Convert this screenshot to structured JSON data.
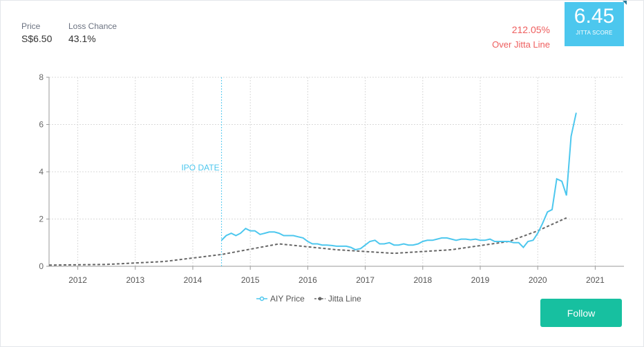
{
  "stats": {
    "price_label": "Price",
    "price_value": "S$6.50",
    "loss_label": "Loss Chance",
    "loss_value": "43.1%"
  },
  "over_jitta": {
    "percent": "212.05%",
    "label": "Over Jitta Line"
  },
  "score": {
    "value": "6.45",
    "caption": "JITTA SCORE"
  },
  "follow_label": "Follow",
  "colors": {
    "price": "#4cc7ee",
    "jitta": "#666666",
    "accent": "#17c0a0",
    "over": "#ee5e5e"
  },
  "chart_data": {
    "type": "line",
    "xlim": [
      2011.5,
      2021.5
    ],
    "ylim": [
      0,
      8
    ],
    "x_ticks": [
      "2012",
      "2013",
      "2014",
      "2015",
      "2016",
      "2017",
      "2018",
      "2019",
      "2020",
      "2021"
    ],
    "y_ticks": [
      "0",
      "2",
      "4",
      "6",
      "8"
    ],
    "annotation": {
      "label": "IPO DATE",
      "x": 2014.5
    },
    "series": [
      {
        "name": "AIY Price",
        "points": [
          [
            2014.5,
            1.1
          ],
          [
            2014.58,
            1.3
          ],
          [
            2014.67,
            1.4
          ],
          [
            2014.75,
            1.3
          ],
          [
            2014.83,
            1.4
          ],
          [
            2014.92,
            1.6
          ],
          [
            2015.0,
            1.5
          ],
          [
            2015.08,
            1.5
          ],
          [
            2015.17,
            1.35
          ],
          [
            2015.25,
            1.4
          ],
          [
            2015.33,
            1.45
          ],
          [
            2015.42,
            1.45
          ],
          [
            2015.5,
            1.4
          ],
          [
            2015.58,
            1.3
          ],
          [
            2015.67,
            1.3
          ],
          [
            2015.75,
            1.3
          ],
          [
            2015.83,
            1.25
          ],
          [
            2015.92,
            1.2
          ],
          [
            2016.0,
            1.05
          ],
          [
            2016.08,
            0.95
          ],
          [
            2016.17,
            0.95
          ],
          [
            2016.25,
            0.9
          ],
          [
            2016.33,
            0.9
          ],
          [
            2016.42,
            0.88
          ],
          [
            2016.5,
            0.85
          ],
          [
            2016.58,
            0.85
          ],
          [
            2016.67,
            0.85
          ],
          [
            2016.75,
            0.8
          ],
          [
            2016.83,
            0.7
          ],
          [
            2016.92,
            0.75
          ],
          [
            2017.0,
            0.9
          ],
          [
            2017.08,
            1.05
          ],
          [
            2017.17,
            1.1
          ],
          [
            2017.25,
            0.95
          ],
          [
            2017.33,
            0.95
          ],
          [
            2017.42,
            1.0
          ],
          [
            2017.5,
            0.9
          ],
          [
            2017.58,
            0.9
          ],
          [
            2017.67,
            0.95
          ],
          [
            2017.75,
            0.9
          ],
          [
            2017.83,
            0.9
          ],
          [
            2017.92,
            0.95
          ],
          [
            2018.0,
            1.05
          ],
          [
            2018.08,
            1.1
          ],
          [
            2018.17,
            1.1
          ],
          [
            2018.25,
            1.15
          ],
          [
            2018.33,
            1.2
          ],
          [
            2018.42,
            1.2
          ],
          [
            2018.5,
            1.15
          ],
          [
            2018.58,
            1.1
          ],
          [
            2018.67,
            1.15
          ],
          [
            2018.75,
            1.15
          ],
          [
            2018.83,
            1.12
          ],
          [
            2018.92,
            1.15
          ],
          [
            2019.0,
            1.1
          ],
          [
            2019.08,
            1.1
          ],
          [
            2019.17,
            1.15
          ],
          [
            2019.25,
            1.05
          ],
          [
            2019.33,
            1.05
          ],
          [
            2019.42,
            1.05
          ],
          [
            2019.5,
            1.05
          ],
          [
            2019.58,
            1.0
          ],
          [
            2019.67,
            1.0
          ],
          [
            2019.75,
            0.8
          ],
          [
            2019.83,
            1.05
          ],
          [
            2019.92,
            1.1
          ],
          [
            2020.0,
            1.4
          ],
          [
            2020.08,
            1.8
          ],
          [
            2020.17,
            2.3
          ],
          [
            2020.25,
            2.4
          ],
          [
            2020.33,
            3.7
          ],
          [
            2020.42,
            3.6
          ],
          [
            2020.5,
            3.0
          ],
          [
            2020.58,
            5.5
          ],
          [
            2020.67,
            6.5
          ]
        ]
      },
      {
        "name": "Jitta Line",
        "points": [
          [
            2011.5,
            0.05
          ],
          [
            2012.5,
            0.08
          ],
          [
            2013.5,
            0.2
          ],
          [
            2014.5,
            0.5
          ],
          [
            2015.5,
            0.95
          ],
          [
            2016.5,
            0.7
          ],
          [
            2017.5,
            0.55
          ],
          [
            2018.5,
            0.7
          ],
          [
            2019.5,
            1.05
          ],
          [
            2020.0,
            1.5
          ],
          [
            2020.5,
            2.05
          ]
        ]
      }
    ]
  }
}
